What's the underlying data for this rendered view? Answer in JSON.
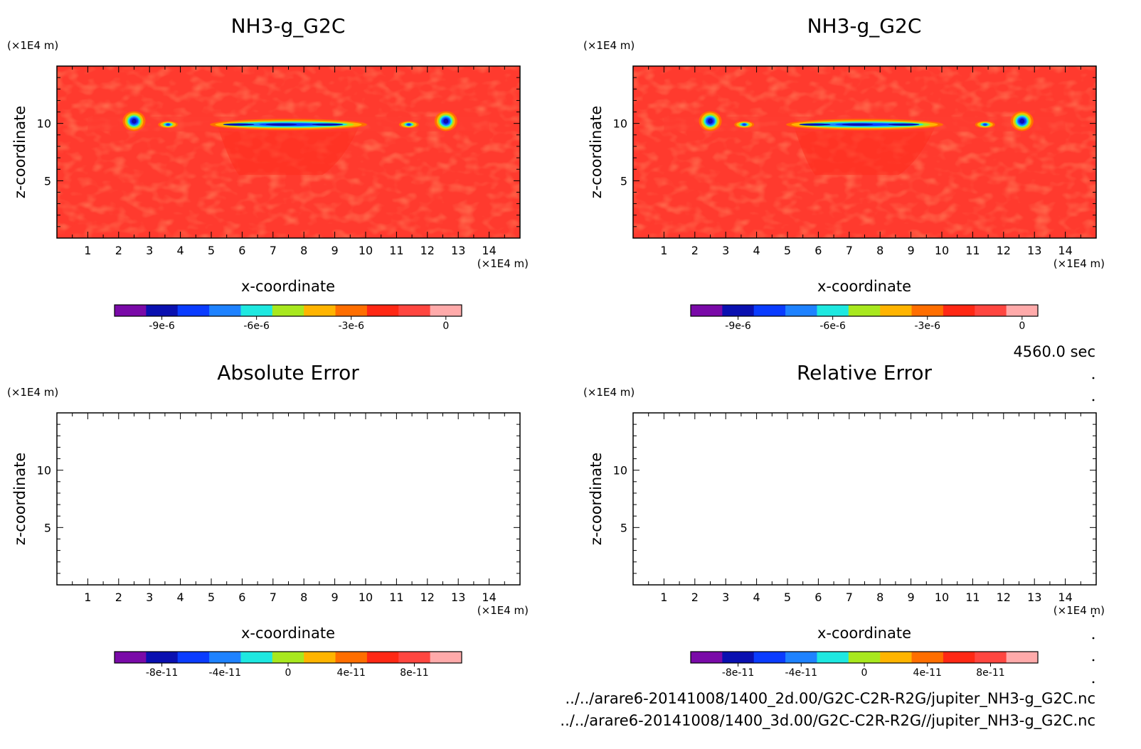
{
  "colors": {
    "background": "#ffffff",
    "field_base": "#ff3a2e",
    "field_dark": "#ff2a14",
    "palette": [
      "#7a0aa8",
      "#0a10b0",
      "#0a3cff",
      "#1e82ff",
      "#1ee8e0",
      "#a8e81e",
      "#ffb400",
      "#ff6e00",
      "#ff2814",
      "#ff4640",
      "#ffaaaa"
    ]
  },
  "time_label": "4560.0 sec",
  "file_paths": [
    "../../arare6-20141008/1400_2d.00/G2C-C2R-R2G/jupiter_NH3-g_G2C.nc",
    "../../arare6-20141008/1400_3d.00/G2C-C2R-R2G//jupiter_NH3-g_G2C.nc"
  ],
  "chart_data": [
    {
      "type": "heatmap",
      "title": "NH3-g_G2C",
      "xlabel": "x-coordinate",
      "ylabel": "z-coordinate",
      "x_unit": "(×1E4 m)",
      "y_unit": "(×1E4 m)",
      "xlim": [
        0,
        15
      ],
      "ylim": [
        0,
        15
      ],
      "x_ticks": [
        1,
        2,
        3,
        4,
        5,
        6,
        7,
        8,
        9,
        10,
        11,
        12,
        13,
        14
      ],
      "y_ticks": [
        5,
        10
      ],
      "colorbar": {
        "levels": [
          -1.05e-05,
          -9.5e-06,
          -8.5e-06,
          -7.5e-06,
          -6.5e-06,
          -5.5e-06,
          -4.5e-06,
          -3.5e-06,
          -2.5e-06,
          -1.5e-06,
          -5e-07,
          5e-07
        ],
        "tick_values": [
          -9e-06,
          -6e-06,
          -3e-06,
          0
        ],
        "tick_labels": [
          "-9e-6",
          "-6e-6",
          "-3e-6",
          "0"
        ]
      },
      "features": [
        {
          "x": 2.5,
          "z": 10.2,
          "min": -9e-06
        },
        {
          "x": 3.6,
          "z": 9.9,
          "min": -7e-06
        },
        {
          "x": 7.5,
          "z": 9.9,
          "min": -6e-06
        },
        {
          "x": 11.4,
          "z": 9.9,
          "min": -7e-06
        },
        {
          "x": 12.6,
          "z": 10.2,
          "min": -9e-06
        }
      ]
    },
    {
      "type": "heatmap",
      "title": "NH3-g_G2C",
      "xlabel": "x-coordinate",
      "ylabel": "z-coordinate",
      "x_unit": "(×1E4 m)",
      "y_unit": "(×1E4 m)",
      "xlim": [
        0,
        15
      ],
      "ylim": [
        0,
        15
      ],
      "x_ticks": [
        1,
        2,
        3,
        4,
        5,
        6,
        7,
        8,
        9,
        10,
        11,
        12,
        13,
        14
      ],
      "y_ticks": [
        5,
        10
      ],
      "colorbar": {
        "levels": [
          -1.05e-05,
          -9.5e-06,
          -8.5e-06,
          -7.5e-06,
          -6.5e-06,
          -5.5e-06,
          -4.5e-06,
          -3.5e-06,
          -2.5e-06,
          -1.5e-06,
          -5e-07,
          5e-07
        ],
        "tick_values": [
          -9e-06,
          -6e-06,
          -3e-06,
          0
        ],
        "tick_labels": [
          "-9e-6",
          "-6e-6",
          "-3e-6",
          "0"
        ]
      },
      "features": [
        {
          "x": 2.5,
          "z": 10.2,
          "min": -9e-06
        },
        {
          "x": 3.6,
          "z": 9.9,
          "min": -7e-06
        },
        {
          "x": 7.5,
          "z": 9.9,
          "min": -6e-06
        },
        {
          "x": 11.4,
          "z": 9.9,
          "min": -7e-06
        },
        {
          "x": 12.6,
          "z": 10.2,
          "min": -9e-06
        }
      ]
    },
    {
      "type": "heatmap",
      "title": "Absolute Error",
      "xlabel": "x-coordinate",
      "ylabel": "z-coordinate",
      "x_unit": "(×1E4 m)",
      "y_unit": "(×1E4 m)",
      "xlim": [
        0,
        15
      ],
      "ylim": [
        0,
        15
      ],
      "x_ticks": [
        1,
        2,
        3,
        4,
        5,
        6,
        7,
        8,
        9,
        10,
        11,
        12,
        13,
        14
      ],
      "y_ticks": [
        5,
        10
      ],
      "colorbar": {
        "levels": [
          -1.1e-10,
          -9e-11,
          -7e-11,
          -5e-11,
          -3e-11,
          -1e-11,
          1e-11,
          3e-11,
          5e-11,
          7e-11,
          9e-11,
          1.1e-10
        ],
        "tick_values": [
          -8e-11,
          -4e-11,
          0,
          4e-11,
          8e-11
        ],
        "tick_labels": [
          "-8e-11",
          "-4e-11",
          "0",
          "4e-11",
          "8e-11"
        ]
      },
      "features": []
    },
    {
      "type": "heatmap",
      "title": "Relative Error",
      "xlabel": "x-coordinate",
      "ylabel": "z-coordinate",
      "x_unit": "(×1E4 m)",
      "y_unit": "(×1E4 m)",
      "xlim": [
        0,
        15
      ],
      "ylim": [
        0,
        15
      ],
      "x_ticks": [
        1,
        2,
        3,
        4,
        5,
        6,
        7,
        8,
        9,
        10,
        11,
        12,
        13,
        14
      ],
      "y_ticks": [
        5,
        10
      ],
      "colorbar": {
        "levels": [
          -1.1e-10,
          -9e-11,
          -7e-11,
          -5e-11,
          -3e-11,
          -1e-11,
          1e-11,
          3e-11,
          5e-11,
          7e-11,
          9e-11,
          1.1e-10
        ],
        "tick_values": [
          -8e-11,
          -4e-11,
          0,
          4e-11,
          8e-11
        ],
        "tick_labels": [
          "-8e-11",
          "-4e-11",
          "0",
          "4e-11",
          "8e-11"
        ]
      },
      "features": []
    }
  ]
}
